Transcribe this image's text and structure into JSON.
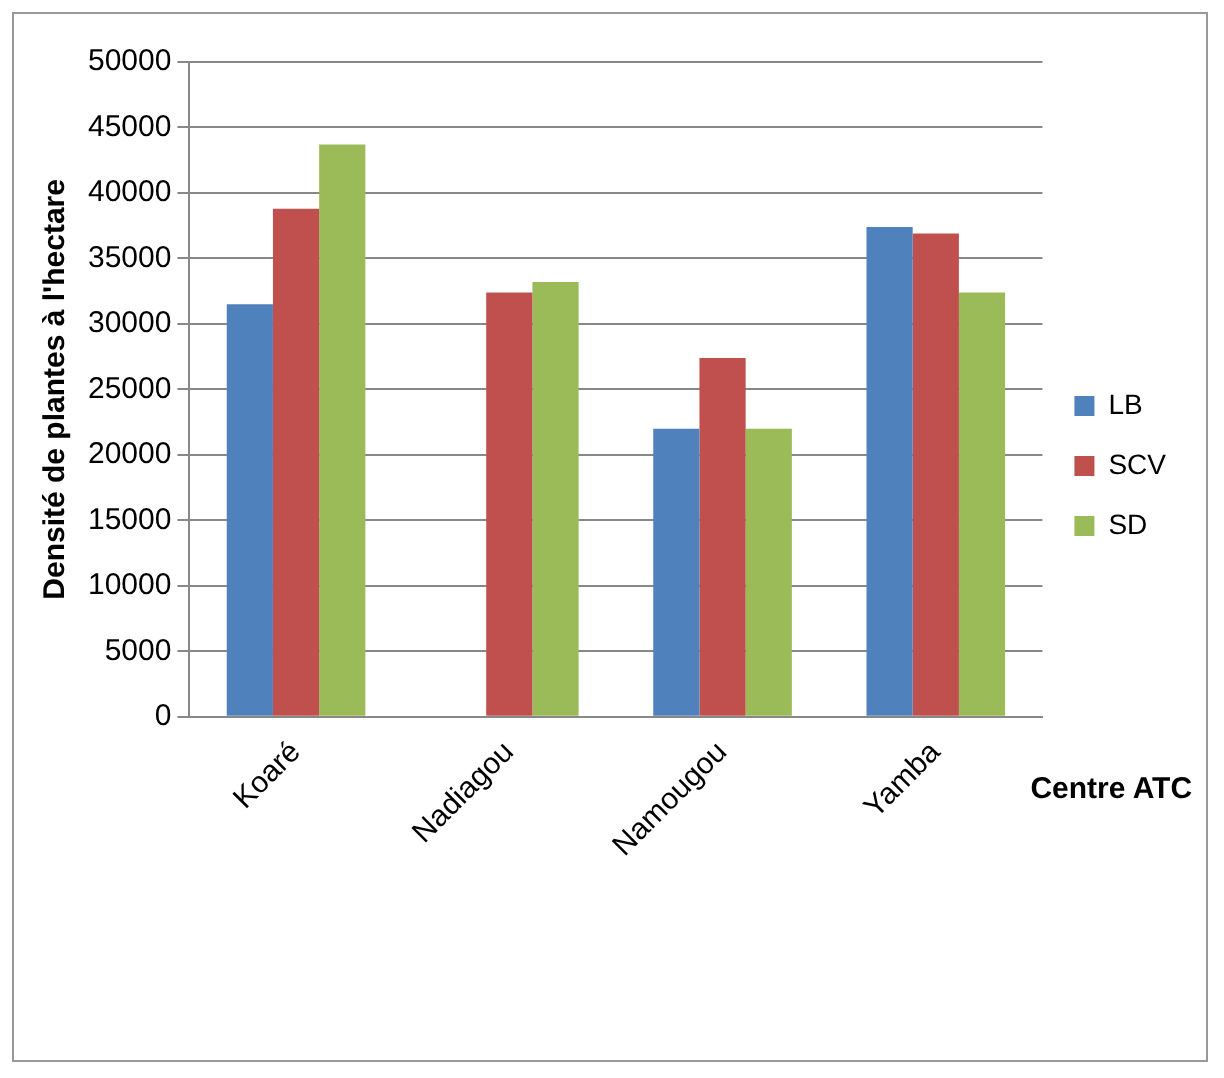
{
  "chart_data": {
    "type": "bar",
    "xlabel": "Centre ATC",
    "ylabel": "Densité de plantes à l'hectare",
    "categories": [
      "Koaré",
      "Nadiagou",
      "Namougou",
      "Yamba"
    ],
    "series": [
      {
        "name": "LB",
        "color": "#4f81bd",
        "values": [
          31500,
          null,
          22000,
          37400
        ]
      },
      {
        "name": "SCV",
        "color": "#c0504d",
        "values": [
          38800,
          32400,
          27400,
          36900
        ]
      },
      {
        "name": "SD",
        "color": "#9bbb59",
        "values": [
          43700,
          33200,
          22000,
          32400
        ]
      }
    ],
    "ylim": [
      0,
      50000
    ],
    "yticks": [
      0,
      5000,
      10000,
      15000,
      20000,
      25000,
      30000,
      35000,
      40000,
      45000,
      50000
    ],
    "grid": "y",
    "legend": "right"
  }
}
